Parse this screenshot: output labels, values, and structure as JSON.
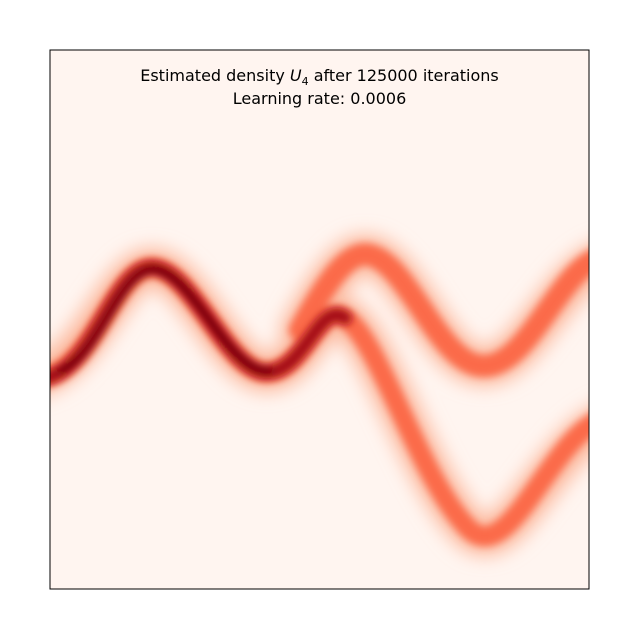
{
  "chart_data": {
    "type": "density",
    "title": [
      "Estimated density ",
      "U",
      "4",
      " after 125000 iterations"
    ],
    "subtitle": "Learning rate: 0.0006",
    "colormap": "Reds"
  }
}
